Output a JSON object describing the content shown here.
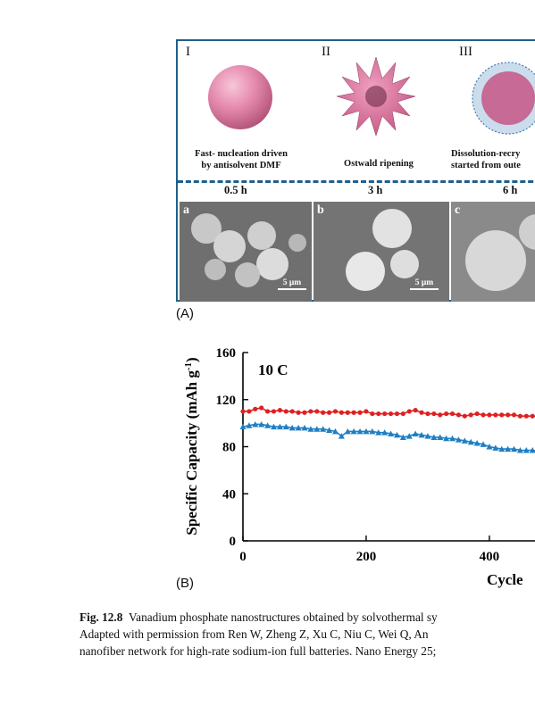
{
  "panel_a": {
    "stages": [
      {
        "roman": "I",
        "desc_line1": "Fast- nucleation driven",
        "desc_line2": "by antisolvent DMF",
        "time": "0.5 h"
      },
      {
        "roman": "II",
        "desc_line1": "Ostwald ripening",
        "desc_line2": "",
        "time": "3 h"
      },
      {
        "roman": "III",
        "desc_line1": "Dissolution-recry",
        "desc_line2": "started from oute",
        "time": "6 h"
      }
    ],
    "sem": [
      {
        "letter": "a",
        "scale": "5 μm"
      },
      {
        "letter": "b",
        "scale": "5 μm"
      },
      {
        "letter": "c",
        "scale": ""
      }
    ],
    "tag": "(A)"
  },
  "panel_b": {
    "tag": "(B)",
    "colors": {
      "red": "#e02020",
      "blue": "#1f7fc4"
    }
  },
  "chart_data": {
    "type": "scatter",
    "annotation": "10 C",
    "ylabel": "Specific Capacity (mAh g",
    "ylabel_sup": "-1",
    "ylabel_close": ")",
    "xlabel": "Cycle",
    "xlim": [
      0,
      490
    ],
    "ylim": [
      0,
      160
    ],
    "x_ticks": [
      "0",
      "200",
      "400"
    ],
    "y_ticks": [
      "0",
      "40",
      "80",
      "120",
      "160"
    ],
    "series": [
      {
        "marker": "circle",
        "color": "red",
        "x": [
          0,
          10,
          20,
          30,
          40,
          50,
          60,
          70,
          80,
          90,
          100,
          110,
          120,
          130,
          140,
          150,
          160,
          170,
          180,
          190,
          200,
          210,
          220,
          230,
          240,
          250,
          260,
          270,
          280,
          290,
          300,
          310,
          320,
          330,
          340,
          350,
          360,
          370,
          380,
          390,
          400,
          410,
          420,
          430,
          440,
          450,
          460,
          470,
          480,
          490
        ],
        "y": [
          110,
          110,
          112,
          113,
          110,
          110,
          111,
          110,
          110,
          109,
          109,
          110,
          110,
          109,
          109,
          110,
          109,
          109,
          109,
          109,
          110,
          108,
          108,
          108,
          108,
          108,
          108,
          110,
          111,
          109,
          108,
          108,
          107,
          108,
          108,
          107,
          106,
          107,
          108,
          107,
          107,
          107,
          107,
          107,
          107,
          106,
          106,
          106,
          106,
          106
        ]
      },
      {
        "marker": "triangle",
        "color": "blue",
        "x": [
          0,
          10,
          20,
          30,
          40,
          50,
          60,
          70,
          80,
          90,
          100,
          110,
          120,
          130,
          140,
          150,
          160,
          170,
          180,
          190,
          200,
          210,
          220,
          230,
          240,
          250,
          260,
          270,
          280,
          290,
          300,
          310,
          320,
          330,
          340,
          350,
          360,
          370,
          380,
          390,
          400,
          410,
          420,
          430,
          440,
          450,
          460,
          470,
          480,
          490
        ],
        "y": [
          97,
          98,
          99,
          99,
          98,
          97,
          97,
          97,
          96,
          96,
          96,
          95,
          95,
          95,
          94,
          93,
          89,
          93,
          93,
          93,
          93,
          93,
          92,
          92,
          91,
          90,
          88,
          89,
          91,
          90,
          89,
          88,
          88,
          87,
          87,
          86,
          85,
          84,
          83,
          82,
          80,
          79,
          78,
          78,
          78,
          77,
          77,
          77,
          76,
          76
        ]
      }
    ]
  },
  "caption": {
    "label": "Fig. 12.8",
    "line1": "Vanadium phosphate nanostructures obtained by solvothermal sy",
    "line2": "Adapted with permission from Ren W, Zheng Z, Xu C, Niu C, Wei Q, An",
    "line3": "nanofiber network for high-rate sodium-ion full batteries. Nano Energy 25;"
  }
}
